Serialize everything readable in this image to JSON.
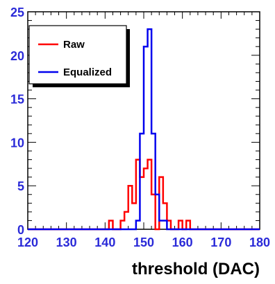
{
  "chart_data": {
    "type": "histogram",
    "xlabel": "threshold (DAC)",
    "ylabel": "",
    "xlim": [
      120,
      180
    ],
    "ylim": [
      0,
      25
    ],
    "xticks": [
      120,
      130,
      140,
      150,
      160,
      170,
      180
    ],
    "yticks": [
      0,
      5,
      10,
      15,
      20,
      25
    ],
    "bin_width": 1,
    "grid": false,
    "legend_position": "top-left",
    "series": [
      {
        "name": "Raw",
        "color": "#ff0000",
        "bin_starts": [
          141,
          142,
          143,
          144,
          145,
          146,
          147,
          148,
          149,
          150,
          151,
          152,
          153,
          154,
          155,
          156,
          157,
          158,
          159,
          160,
          161
        ],
        "values": [
          1,
          0,
          0,
          1,
          2,
          5,
          3,
          8,
          6,
          7,
          8,
          4,
          0,
          6,
          3,
          1,
          0,
          0,
          1,
          0,
          1
        ]
      },
      {
        "name": "Equalized",
        "color": "#0000ee",
        "bin_starts": [
          146,
          147,
          148,
          149,
          150,
          151,
          152,
          153,
          154,
          155,
          156
        ],
        "values": [
          0,
          0,
          1,
          11,
          21,
          23,
          11,
          4,
          1,
          1,
          0
        ]
      }
    ]
  }
}
